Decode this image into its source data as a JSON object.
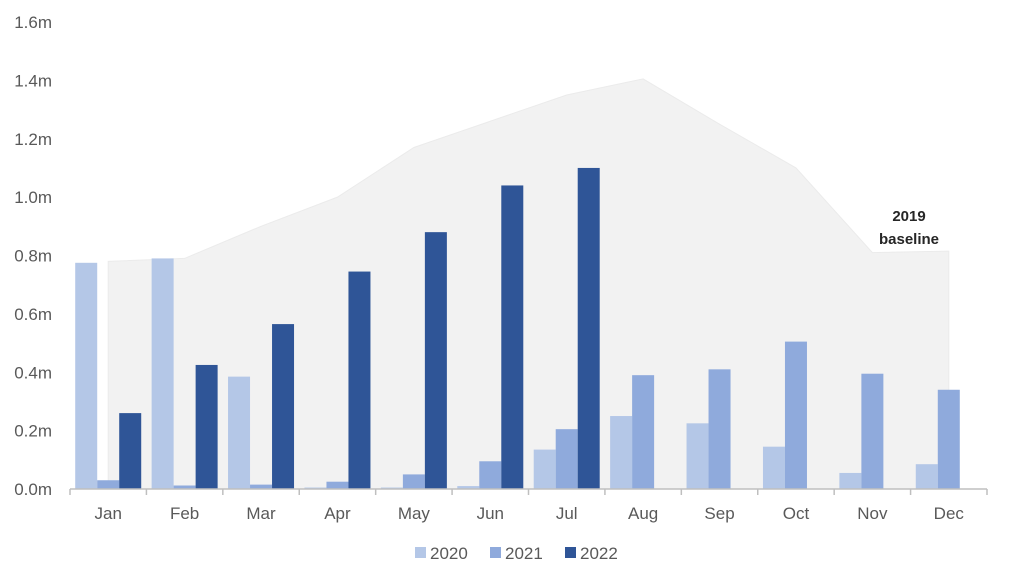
{
  "chart_data": {
    "type": "bar",
    "categories": [
      "Jan",
      "Feb",
      "Mar",
      "Apr",
      "May",
      "Jun",
      "Jul",
      "Aug",
      "Sep",
      "Oct",
      "Nov",
      "Dec"
    ],
    "series": [
      {
        "name": "2020",
        "color": "#b4c7e7",
        "values": [
          0.775,
          0.79,
          0.385,
          0.005,
          0.005,
          0.01,
          0.135,
          0.25,
          0.225,
          0.145,
          0.055,
          0.085
        ]
      },
      {
        "name": "2021",
        "color": "#8faadc",
        "values": [
          0.03,
          0.012,
          0.015,
          0.025,
          0.05,
          0.095,
          0.205,
          0.39,
          0.41,
          0.505,
          0.395,
          0.34
        ]
      },
      {
        "name": "2022",
        "color": "#2f5597",
        "values": [
          0.26,
          0.425,
          0.565,
          0.745,
          0.88,
          1.04,
          1.1,
          null,
          null,
          null,
          null,
          null
        ]
      }
    ],
    "baseline": {
      "type": "area",
      "color": "#f2f2f2",
      "values": [
        0.78,
        0.79,
        0.9,
        1.0,
        1.17,
        1.26,
        1.35,
        1.405,
        1.25,
        1.1,
        0.81,
        0.815
      ]
    },
    "annotation": {
      "line1": "2019",
      "line2": "baseline"
    },
    "yticks": [
      "0.0m",
      "0.2m",
      "0.4m",
      "0.6m",
      "0.8m",
      "1.0m",
      "1.2m",
      "1.4m",
      "1.6m"
    ],
    "ylim": [
      0,
      1.6
    ],
    "legend_placement": "bottom-center",
    "grid": false
  }
}
